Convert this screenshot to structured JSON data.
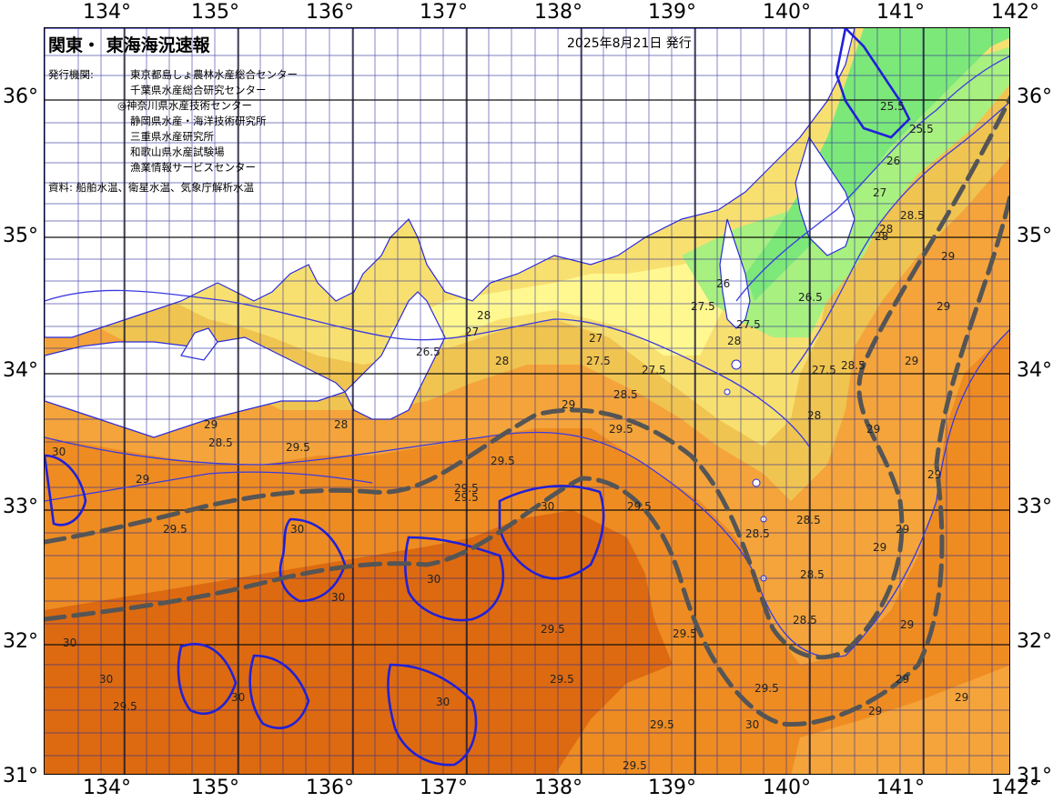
{
  "header": {
    "title": "関東・ 東海海況速報",
    "date": "2025年8月21日 発行"
  },
  "credits": {
    "issuer_label": "発行機関:",
    "organizations": [
      "東京都島しょ農林水産総合センター",
      "千葉県水産総合研究センター",
      "◎神奈川県水産技術センター",
      "静岡県水産・海洋技術研究所",
      "三重県水産研究所",
      "和歌山県水産試験場",
      "漁業情報サービスセンター"
    ],
    "source": "資料: 船舶水温、衛星水温、気象庁解析水温"
  },
  "axes": {
    "longitude_labels": [
      "134°",
      "135°",
      "136°",
      "137°",
      "138°",
      "139°",
      "140°",
      "141°",
      "142°"
    ],
    "latitude_labels": [
      "36°",
      "35°",
      "34°",
      "33°",
      "32°",
      "31°"
    ]
  },
  "contour_labels": [
    "25.5",
    "25.5",
    "26",
    "27",
    "28",
    "28.5",
    "28",
    "26",
    "26.5",
    "27.5",
    "27.5",
    "28",
    "27",
    "28",
    "27",
    "27.5",
    "27.5",
    "28",
    "27.5",
    "28",
    "26.5",
    "28",
    "29",
    "28.5",
    "29",
    "29",
    "29",
    "28.5",
    "29",
    "29",
    "29",
    "29.5",
    "29.5",
    "29.5",
    "29",
    "28.5",
    "28.5",
    "28.5",
    "28.5",
    "28.5",
    "29",
    "29",
    "29",
    "29",
    "29",
    "29",
    "29.5",
    "29.5",
    "29.5",
    "29.5",
    "30",
    "30",
    "30",
    "30",
    "30",
    "29.5",
    "29.5",
    "29.5",
    "29.5",
    "29.5",
    "29.5",
    "30",
    "30",
    "30",
    "30",
    "29.5",
    "30"
  ],
  "colors": {
    "green_light": "#a8f080",
    "green": "#7ce87a",
    "yellow_light": "#fff890",
    "yellow": "#f8e070",
    "yellow_orange": "#f0c450",
    "orange_light": "#f4a43a",
    "orange": "#ee8c22",
    "orange_dark": "#dd6a10",
    "contour_blue": "#2a2adc",
    "current_axis": "#555555",
    "grid": "#2a2a9a"
  }
}
